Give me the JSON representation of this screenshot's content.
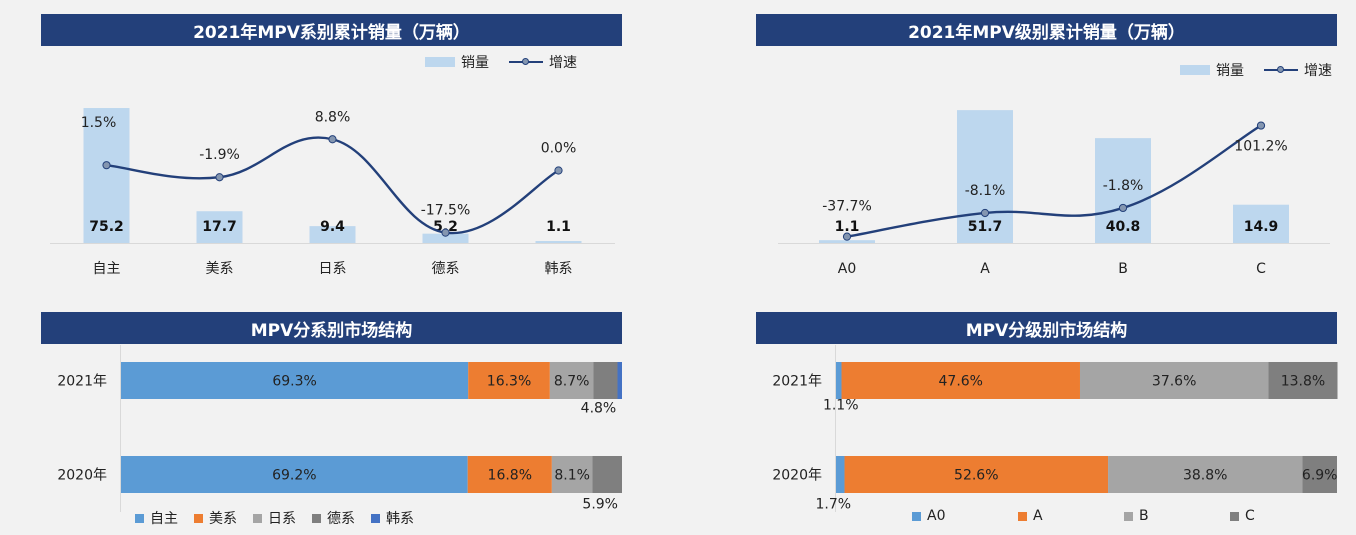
{
  "colors": {
    "title_bg": "#23407a",
    "bar_light": "#bdd7ee",
    "line": "#23407a",
    "seg": [
      "#5b9bd5",
      "#ed7d31",
      "#a5a5a5",
      "#7f7f7f",
      "#4472c4"
    ]
  },
  "panels": {
    "tl_title": "2021年MPV系别累计销量（万辆）",
    "tr_title": "2021年MPV级别累计销量（万辆）",
    "bl_title": "MPV分系别市场结构",
    "br_title": "MPV分级别市场结构"
  },
  "legend_top": {
    "bar": "销量",
    "line": "增速"
  },
  "chart_data": [
    {
      "type": "bar",
      "title": "2021年MPV系别累计销量（万辆）",
      "categories": [
        "自主",
        "美系",
        "日系",
        "德系",
        "韩系"
      ],
      "series": [
        {
          "name": "销量",
          "values": [
            75.2,
            17.7,
            9.4,
            5.2,
            1.1
          ],
          "labels": [
            "75.2",
            "17.7",
            "9.4",
            "5.2",
            "1.1"
          ]
        },
        {
          "name": "增速",
          "type": "line",
          "values": [
            1.5,
            -1.9,
            8.8,
            -17.5,
            0.0
          ],
          "labels": [
            "1.5%",
            "-1.9%",
            "8.8%",
            "-17.5%",
            "0.0%"
          ]
        }
      ]
    },
    {
      "type": "bar",
      "title": "2021年MPV级别累计销量（万辆）",
      "categories": [
        "A0",
        "A",
        "B",
        "C"
      ],
      "series": [
        {
          "name": "销量",
          "values": [
            1.1,
            51.7,
            40.8,
            14.9
          ],
          "labels": [
            "1.1",
            "51.7",
            "40.8",
            "14.9"
          ]
        },
        {
          "name": "增速",
          "type": "line",
          "values": [
            -37.7,
            -8.1,
            -1.8,
            101.2
          ],
          "labels": [
            "-37.7%",
            "-8.1%",
            "-1.8%",
            "101.2%"
          ]
        }
      ]
    },
    {
      "type": "bar",
      "stacked": true,
      "orientation": "horizontal",
      "title": "MPV分系别市场结构",
      "categories": [
        "2021年",
        "2020年"
      ],
      "series": [
        {
          "name": "自主",
          "values": [
            69.3,
            69.2
          ],
          "labels": [
            "69.3%",
            "69.2%"
          ]
        },
        {
          "name": "美系",
          "values": [
            16.3,
            16.8
          ],
          "labels": [
            "16.3%",
            "16.8%"
          ]
        },
        {
          "name": "日系",
          "values": [
            8.7,
            8.1
          ],
          "labels": [
            "8.7%",
            "8.1%"
          ]
        },
        {
          "name": "德系",
          "values": [
            4.8,
            5.9
          ],
          "labels": [
            "4.8%",
            "5.9%"
          ]
        },
        {
          "name": "韩系",
          "values": [
            0.9,
            0.0
          ],
          "labels": [
            "",
            ""
          ]
        }
      ]
    },
    {
      "type": "bar",
      "stacked": true,
      "orientation": "horizontal",
      "title": "MPV分级别市场结构",
      "categories": [
        "2021年",
        "2020年"
      ],
      "series": [
        {
          "name": "A0",
          "values": [
            1.1,
            1.7
          ],
          "labels": [
            "1.1%",
            "1.7%"
          ]
        },
        {
          "name": "A",
          "values": [
            47.6,
            52.6
          ],
          "labels": [
            "47.6%",
            "52.6%"
          ]
        },
        {
          "name": "B",
          "values": [
            37.6,
            38.8
          ],
          "labels": [
            "37.6%",
            "38.8%"
          ]
        },
        {
          "name": "C",
          "values": [
            13.8,
            6.9
          ],
          "labels": [
            "13.8%",
            "6.9%"
          ]
        }
      ]
    }
  ]
}
